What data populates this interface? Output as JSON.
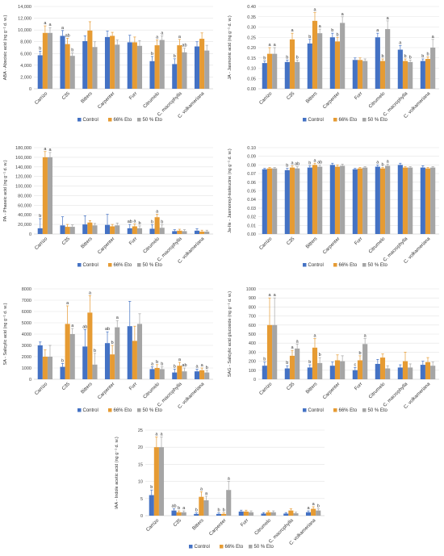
{
  "figure": {
    "legend_labels": [
      "Control",
      "66% Eto",
      "50 % Eto"
    ],
    "series_colors": [
      "#4472C4",
      "#E69B33",
      "#A5A5A5"
    ]
  },
  "chart_data": [
    {
      "type": "bar",
      "ylabel": "ABA - Abscisic acid (ng g⁻¹ d. w.)",
      "categories": [
        "Carrizo",
        "C35",
        "Bitters",
        "Carpenter",
        "Furr",
        "Citrumelo",
        "C. macrophylla",
        "C. volkameriana"
      ],
      "ylim": [
        0,
        14000
      ],
      "yticks": [
        0,
        2000,
        4000,
        6000,
        8000,
        10000,
        12000,
        14000
      ],
      "ytick_labels": [
        "0",
        "2,000",
        "4,000",
        "6,000",
        "8,000",
        "10,000",
        "12,000",
        "14,000"
      ],
      "series": [
        {
          "name": "Control",
          "values": [
            5700,
            9000,
            8100,
            8800,
            7900,
            4700,
            4200,
            7200
          ],
          "errors": [
            700,
            900,
            900,
            1000,
            1200,
            800,
            900,
            800
          ]
        },
        {
          "name": "66% Eto",
          "values": [
            9500,
            7600,
            9900,
            9000,
            7900,
            7400,
            7400,
            8500
          ],
          "errors": [
            1200,
            1000,
            1500,
            600,
            900,
            900,
            1000,
            1000
          ]
        },
        {
          "name": "50 % Eto",
          "values": [
            9500,
            5600,
            7100,
            7500,
            7300,
            8300,
            6200,
            6500
          ],
          "errors": [
            900,
            500,
            900,
            800,
            900,
            700,
            700,
            900
          ]
        }
      ],
      "labels": [
        [
          "b",
          "a",
          "",
          "",
          "",
          "b",
          "b",
          ""
        ],
        [
          "a",
          "ab",
          "",
          "",
          "",
          "a",
          "a",
          ""
        ],
        [
          "a",
          "b",
          "",
          "",
          "",
          "a",
          "ab",
          ""
        ]
      ],
      "legend_position": "bottom"
    },
    {
      "type": "bar",
      "ylabel": "JA - Jasmonic acid (ng g⁻¹ d. w.)",
      "categories": [
        "Carrizo",
        "C35",
        "Bitters",
        "Carpenter",
        "Furr",
        "Citrumelo",
        "C. macrophylla",
        "C. volkameriana"
      ],
      "ylim": [
        0,
        0.4
      ],
      "yticks": [
        0,
        0.05,
        0.1,
        0.15,
        0.2,
        0.25,
        0.3,
        0.35,
        0.4
      ],
      "ytick_labels": [
        "0.00",
        "0.05",
        "0.10",
        "0.15",
        "0.20",
        "0.25",
        "0.30",
        "0.35",
        "0.40"
      ],
      "series": [
        {
          "name": "Control",
          "values": [
            0.125,
            0.13,
            0.22,
            0.25,
            0.14,
            0.25,
            0.19,
            0.135
          ],
          "errors": [
            0.01,
            0.01,
            0.02,
            0.02,
            0.01,
            0.02,
            0.02,
            0.01
          ]
        },
        {
          "name": "66% Eto",
          "values": [
            0.17,
            0.24,
            0.33,
            0.23,
            0.14,
            0.135,
            0.135,
            0.145
          ],
          "errors": [
            0.03,
            0.03,
            0.04,
            0.02,
            0.01,
            0.01,
            0.01,
            0.01
          ]
        },
        {
          "name": "50 % Eto",
          "values": [
            0.17,
            0.13,
            0.27,
            0.32,
            0.135,
            0.29,
            0.13,
            0.2
          ],
          "errors": [
            0.03,
            0.01,
            0.02,
            0.03,
            0.01,
            0.04,
            0.01,
            0.04
          ]
        }
      ],
      "labels": [
        [
          "b",
          "b",
          "b",
          "b",
          "",
          "a",
          "a",
          "b"
        ],
        [
          "a",
          "a",
          "a",
          "b",
          "",
          "b",
          "b",
          "b"
        ],
        [
          "a",
          "b",
          "a",
          "a",
          "",
          "a",
          "b",
          "a"
        ]
      ],
      "legend_position": "bottom"
    },
    {
      "type": "bar",
      "ylabel": "PA - Phaseic acid (ng g⁻¹ d. w.)",
      "categories": [
        "Carrizo",
        "C35",
        "Bitters",
        "Carpenter",
        "Furr",
        "Citrumelo",
        "C. macrophylla",
        "C. volkameriana"
      ],
      "ylim": [
        0,
        180000
      ],
      "yticks": [
        0,
        20000,
        40000,
        60000,
        80000,
        100000,
        120000,
        140000,
        160000,
        180000
      ],
      "ytick_labels": [
        "0",
        "20,000",
        "40,000",
        "60,000",
        "80,000",
        "100,000",
        "120,000",
        "140,000",
        "160,000",
        "180,000"
      ],
      "series": [
        {
          "name": "Control",
          "values": [
            12000,
            18000,
            20000,
            19000,
            12000,
            11000,
            6000,
            7000
          ],
          "errors": [
            20000,
            18000,
            18000,
            22000,
            8000,
            8000,
            3000,
            4000
          ]
        },
        {
          "name": "66% Eto",
          "values": [
            160000,
            15000,
            24000,
            16000,
            16000,
            35000,
            7000,
            5000
          ],
          "errors": [
            12000,
            5000,
            4000,
            4000,
            5000,
            6000,
            3000,
            3000
          ]
        },
        {
          "name": "50 % Eto",
          "values": [
            160000,
            15000,
            18000,
            18000,
            12000,
            13000,
            6000,
            5000
          ],
          "errors": [
            10000,
            4000,
            4000,
            5000,
            5000,
            6000,
            3000,
            3000
          ]
        }
      ],
      "labels": [
        [
          "b",
          "",
          "",
          "",
          "ab",
          "b",
          "",
          ""
        ],
        [
          "a",
          "",
          "",
          "",
          "a",
          "a",
          "",
          ""
        ],
        [
          "a",
          "",
          "",
          "",
          "b",
          "b",
          "",
          ""
        ]
      ],
      "legend_position": "bottom"
    },
    {
      "type": "bar",
      "ylabel": "Ja-Ile - Jasmonoyl-isoleucine (ng g⁻¹ d. w.)",
      "categories": [
        "Carrizo",
        "C35",
        "Bitters",
        "Carpenter",
        "Furr",
        "Citrumelo",
        "C. macrophylla",
        "C. volkameriana"
      ],
      "ylim": [
        0,
        0.1
      ],
      "yticks": [
        0,
        0.01,
        0.02,
        0.03,
        0.04,
        0.05,
        0.06,
        0.07,
        0.08,
        0.09,
        0.1
      ],
      "ytick_labels": [
        "0.00",
        "0.01",
        "0.02",
        "0.03",
        "0.04",
        "0.05",
        "0.06",
        "0.07",
        "0.08",
        "0.09",
        "0.10"
      ],
      "series": [
        {
          "name": "Control",
          "values": [
            0.075,
            0.074,
            0.077,
            0.08,
            0.075,
            0.078,
            0.08,
            0.077
          ],
          "errors": [
            0.001,
            0.002,
            0.002,
            0.002,
            0.001,
            0.002,
            0.002,
            0.002
          ]
        },
        {
          "name": "66% Eto",
          "values": [
            0.076,
            0.077,
            0.08,
            0.078,
            0.076,
            0.076,
            0.077,
            0.076
          ],
          "errors": [
            0.001,
            0.002,
            0.002,
            0.002,
            0.001,
            0.001,
            0.001,
            0.001
          ]
        },
        {
          "name": "50 % Eto",
          "values": [
            0.076,
            0.076,
            0.078,
            0.079,
            0.077,
            0.079,
            0.077,
            0.077
          ],
          "errors": [
            0.001,
            0.002,
            0.002,
            0.002,
            0.001,
            0.002,
            0.001,
            0.001
          ]
        }
      ],
      "labels": [
        [
          "",
          "b",
          "b",
          "",
          "",
          "a",
          "",
          ""
        ],
        [
          "",
          "a",
          "a",
          "",
          "",
          "b",
          "",
          ""
        ],
        [
          "",
          "ab",
          "ab",
          "",
          "",
          "a",
          "",
          ""
        ]
      ],
      "legend_position": "bottom"
    },
    {
      "type": "bar",
      "ylabel": "SA - Salicylic acid (ng g⁻¹ d. w.)",
      "categories": [
        "Carrizo",
        "C35",
        "Bitters",
        "Carpenter",
        "Furr",
        "Citrumelo",
        "C. macrophylla",
        "C. volkameriana"
      ],
      "ylim": [
        0,
        8000
      ],
      "yticks": [
        0,
        1000,
        2000,
        3000,
        4000,
        5000,
        6000,
        7000,
        8000
      ],
      "ytick_labels": [
        "0",
        "1000",
        "2000",
        "3000",
        "4000",
        "5000",
        "6000",
        "7000",
        "8000"
      ],
      "series": [
        {
          "name": "Control",
          "values": [
            3000,
            1100,
            2900,
            3200,
            4700,
            900,
            600,
            700
          ],
          "errors": [
            300,
            300,
            1500,
            1000,
            2200,
            200,
            300,
            200
          ]
        },
        {
          "name": "66% Eto",
          "values": [
            2000,
            4900,
            5900,
            2200,
            3400,
            1000,
            1200,
            800
          ],
          "errors": [
            600,
            1600,
            1500,
            800,
            1300,
            300,
            300,
            200
          ]
        },
        {
          "name": "50 % Eto",
          "values": [
            2000,
            4000,
            1300,
            4600,
            4900,
            900,
            700,
            600
          ],
          "errors": [
            1000,
            500,
            1000,
            600,
            900,
            200,
            300,
            200
          ]
        }
      ],
      "labels": [
        [
          "",
          "b",
          "ab",
          "ab",
          "",
          "a",
          "b",
          "a"
        ],
        [
          "",
          "a",
          "a",
          "b",
          "",
          "b",
          "a",
          "a"
        ],
        [
          "",
          "a",
          "b",
          "a",
          "",
          "b",
          "ab",
          "b"
        ]
      ],
      "legend_position": "bottom"
    },
    {
      "type": "bar",
      "ylabel": "SAG - Salicylic acid glucoside (ng g⁻¹ d. w.)",
      "categories": [
        "Carrizo",
        "C35",
        "Bitters",
        "Carpenter",
        "Furr",
        "Citrumelo",
        "C. macrophylla",
        "C. volkameriana"
      ],
      "ylim": [
        0,
        1000
      ],
      "yticks": [
        0,
        100,
        200,
        300,
        400,
        500,
        600,
        700,
        800,
        900,
        1000
      ],
      "ytick_labels": [
        "0",
        "100",
        "200",
        "300",
        "400",
        "500",
        "600",
        "700",
        "800",
        "900",
        "1000"
      ],
      "series": [
        {
          "name": "Control",
          "values": [
            150,
            120,
            130,
            150,
            100,
            170,
            130,
            160
          ],
          "errors": [
            40,
            30,
            30,
            40,
            30,
            50,
            30,
            40
          ]
        },
        {
          "name": "66% Eto",
          "values": [
            600,
            260,
            350,
            210,
            210,
            240,
            200,
            190
          ],
          "errors": [
            300,
            60,
            100,
            60,
            50,
            40,
            100,
            50
          ]
        },
        {
          "name": "50 % Eto",
          "values": [
            600,
            340,
            180,
            200,
            390,
            120,
            130,
            150
          ],
          "errors": [
            300,
            50,
            60,
            60,
            60,
            30,
            40,
            40
          ]
        }
      ],
      "labels": [
        [
          "b",
          "b",
          "b",
          "",
          "c",
          "",
          "",
          ""
        ],
        [
          "a",
          "a",
          "a",
          "",
          "b",
          "",
          "",
          ""
        ],
        [
          "a",
          "a",
          "b",
          "",
          "a",
          "",
          "",
          ""
        ]
      ],
      "legend_position": "bottom"
    },
    {
      "type": "bar",
      "ylabel": "IAA - Indole acetic acid (ng g⁻¹ d. w.)",
      "categories": [
        "Carrizo",
        "C35",
        "Bitters",
        "Carpenter",
        "Furr",
        "Citrumelo",
        "C. macrophylla",
        "C. volkameriana"
      ],
      "ylim": [
        0,
        25
      ],
      "yticks": [
        0,
        5,
        10,
        15,
        20,
        25
      ],
      "ytick_labels": [
        "0",
        "5",
        "10",
        "15",
        "20",
        "25"
      ],
      "series": [
        {
          "name": "Control",
          "values": [
            6,
            1.5,
            0.5,
            0.5,
            1.2,
            0.6,
            0.6,
            1
          ],
          "errors": [
            1.5,
            0.5,
            0.3,
            0.3,
            0.4,
            0.3,
            0.3,
            0.4
          ]
        },
        {
          "name": "66% Eto",
          "values": [
            20,
            1,
            5.5,
            0.5,
            1.2,
            1,
            1.5,
            2
          ],
          "errors": [
            3,
            0.4,
            1.5,
            0.3,
            0.4,
            0.4,
            0.5,
            0.6
          ]
        },
        {
          "name": "50 % Eto",
          "values": [
            20,
            1,
            4.5,
            7.5,
            1,
            1,
            0.7,
            1.5
          ],
          "errors": [
            3,
            0.4,
            1.2,
            2.5,
            0.4,
            0.4,
            0.3,
            0.5
          ]
        }
      ],
      "labels": [
        [
          "b",
          "ab",
          "b",
          "b",
          "",
          "",
          "",
          "a"
        ],
        [
          "a",
          "b",
          "a",
          "b",
          "",
          "",
          "",
          "a"
        ],
        [
          "a",
          "a",
          "a",
          "a",
          "",
          "",
          "",
          "b"
        ]
      ],
      "legend_position": "bottom"
    }
  ]
}
